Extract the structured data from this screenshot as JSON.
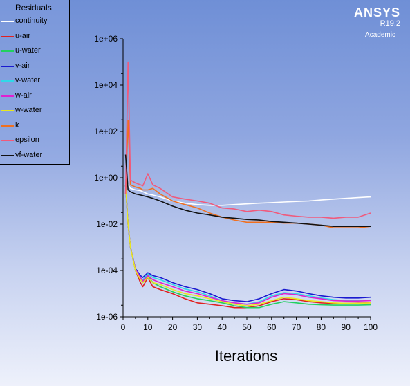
{
  "logo": {
    "brand": "ANSYS",
    "version": "R19.2",
    "edition": "Academic"
  },
  "chart_data": {
    "type": "line",
    "title": "",
    "xlabel": "Iterations",
    "ylabel": "",
    "legend_title": "Residuals",
    "legend_position": "top-left",
    "xlim": [
      0,
      100
    ],
    "ylim": [
      1e-06,
      1000000.0
    ],
    "yscale": "log",
    "x_ticks": [
      0,
      10,
      20,
      30,
      40,
      50,
      60,
      70,
      80,
      90,
      100
    ],
    "y_ticks": [
      "1e-06",
      "1e-04",
      "1e-02",
      "1e+00",
      "1e+02",
      "1e+04",
      "1e+06"
    ],
    "x": [
      1,
      2,
      3,
      5,
      7,
      8,
      10,
      12,
      15,
      20,
      25,
      30,
      35,
      40,
      45,
      50,
      55,
      60,
      65,
      70,
      75,
      80,
      85,
      90,
      95,
      100
    ],
    "series": [
      {
        "name": "continuity",
        "color": "#ffffff",
        "values": [
          1.0,
          0.5,
          0.35,
          0.3,
          0.28,
          0.25,
          0.2,
          0.18,
          0.15,
          0.1,
          0.08,
          0.07,
          0.065,
          0.065,
          0.07,
          0.075,
          0.08,
          0.085,
          0.09,
          0.095,
          0.1,
          0.11,
          0.12,
          0.13,
          0.14,
          0.15
        ]
      },
      {
        "name": "u-air",
        "color": "#e02020",
        "values": [
          0.5,
          0.01,
          0.001,
          0.0001,
          3e-05,
          2e-05,
          5e-05,
          2e-05,
          1.5e-05,
          1e-05,
          6e-06,
          4e-06,
          3.5e-06,
          3e-06,
          2.5e-06,
          2.5e-06,
          3e-06,
          4.5e-06,
          6e-06,
          5.5e-06,
          4.5e-06,
          4e-06,
          3.8e-06,
          3.8e-06,
          3.9e-06,
          4e-06
        ]
      },
      {
        "name": "u-water",
        "color": "#22d060",
        "values": [
          0.5,
          0.01,
          0.001,
          0.0001,
          4e-05,
          3e-05,
          6e-05,
          3e-05,
          2e-05,
          1.2e-05,
          8e-06,
          6e-06,
          5e-06,
          4e-06,
          3e-06,
          2.5e-06,
          2.5e-06,
          3.5e-06,
          4.5e-06,
          4e-06,
          3.5e-06,
          3.3e-06,
          3.2e-06,
          3.2e-06,
          3.2e-06,
          3.3e-06
        ]
      },
      {
        "name": "v-air",
        "color": "#1a1ad0",
        "values": [
          0.5,
          0.01,
          0.001,
          0.00012,
          6e-05,
          5e-05,
          8e-05,
          6e-05,
          5e-05,
          3e-05,
          2e-05,
          1.5e-05,
          1e-05,
          6e-06,
          5e-06,
          4.5e-06,
          6e-06,
          1e-05,
          1.5e-05,
          1.3e-05,
          1e-05,
          8e-06,
          7e-06,
          6.5e-06,
          6.5e-06,
          7e-06
        ]
      },
      {
        "name": "v-water",
        "color": "#30d8e8",
        "values": [
          0.5,
          0.01,
          0.001,
          0.00011,
          5e-05,
          4e-05,
          7e-05,
          5e-05,
          4e-05,
          2.5e-05,
          1.6e-05,
          1.2e-05,
          8e-06,
          5e-06,
          4e-06,
          3.5e-06,
          4.5e-06,
          8e-06,
          1.1e-05,
          1e-05,
          8e-06,
          6.5e-06,
          5.5e-06,
          5e-06,
          5e-06,
          5.3e-06
        ]
      },
      {
        "name": "w-air",
        "color": "#e020d0",
        "values": [
          0.5,
          0.01,
          0.001,
          0.00011,
          5e-05,
          3.5e-05,
          6e-05,
          4e-05,
          3e-05,
          2e-05,
          1.3e-05,
          1e-05,
          7e-06,
          5e-06,
          4e-06,
          3.5e-06,
          4e-06,
          7e-06,
          1e-05,
          9e-06,
          7e-06,
          6e-06,
          5e-06,
          4.8e-06,
          4.8e-06,
          5e-06
        ]
      },
      {
        "name": "w-water",
        "color": "#e8e820",
        "values": [
          0.5,
          0.01,
          0.001,
          0.0001,
          4e-05,
          3e-05,
          5e-05,
          3e-05,
          2.5e-05,
          1.5e-05,
          1e-05,
          8e-06,
          6e-06,
          4.5e-06,
          3.5e-06,
          3e-06,
          3.5e-06,
          5e-06,
          7e-06,
          6e-06,
          5e-06,
          4.5e-06,
          4e-06,
          3.8e-06,
          3.8e-06,
          4e-06
        ]
      },
      {
        "name": "k",
        "color": "#f07020",
        "values": [
          0.2,
          300,
          0.5,
          0.4,
          0.35,
          0.3,
          0.3,
          0.35,
          0.2,
          0.1,
          0.07,
          0.05,
          0.03,
          0.02,
          0.015,
          0.012,
          0.012,
          0.012,
          0.011,
          0.011,
          0.01,
          0.009,
          0.007,
          0.007,
          0.007,
          0.008
        ]
      },
      {
        "name": "epsilon",
        "color": "#f05a7c",
        "values": [
          0.2,
          100000,
          0.8,
          0.6,
          0.5,
          0.45,
          1.5,
          0.5,
          0.35,
          0.15,
          0.12,
          0.1,
          0.08,
          0.05,
          0.045,
          0.035,
          0.04,
          0.035,
          0.025,
          0.022,
          0.02,
          0.02,
          0.018,
          0.02,
          0.02,
          0.03
        ]
      },
      {
        "name": "vf-water",
        "color": "#111111",
        "values": [
          10,
          0.3,
          0.25,
          0.2,
          0.18,
          0.17,
          0.15,
          0.13,
          0.1,
          0.06,
          0.04,
          0.03,
          0.025,
          0.02,
          0.018,
          0.016,
          0.015,
          0.013,
          0.012,
          0.011,
          0.01,
          0.009,
          0.008,
          0.008,
          0.008,
          0.008
        ]
      }
    ]
  }
}
